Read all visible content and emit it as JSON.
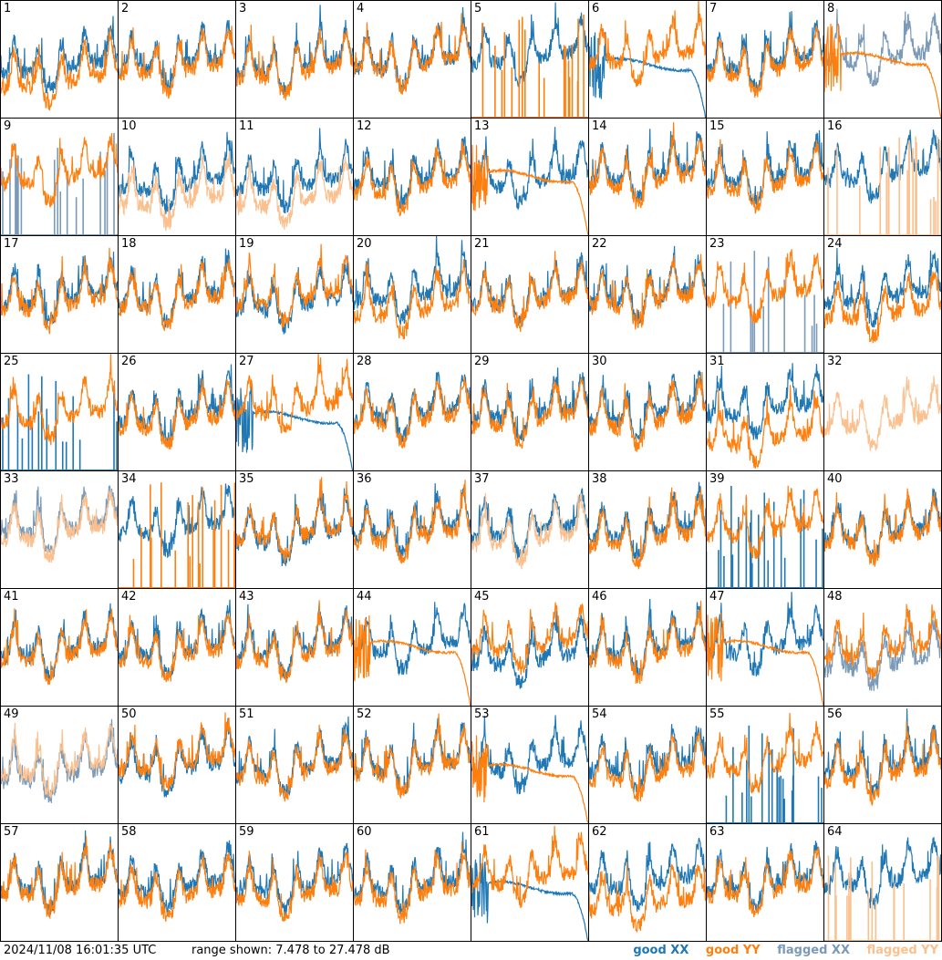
{
  "footer": {
    "timestamp": "2024/11/08 16:01:35 UTC",
    "range_text": "range shown: 7.478 to 27.478 dB"
  },
  "legend": [
    {
      "label": "good XX",
      "color": "#1f77b4"
    },
    {
      "label": "good YY",
      "color": "#ff7f0e"
    },
    {
      "label": "flagged XX",
      "color": "#7a9ab8"
    },
    {
      "label": "flagged YY",
      "color": "#fbc08e"
    }
  ],
  "chart_data": {
    "type": "line",
    "grid": {
      "rows": 8,
      "cols": 8
    },
    "ylim": [
      7.478,
      27.478
    ],
    "panels": [
      {
        "n": "1",
        "xx": "good",
        "yy": "good",
        "xx_mode": "normal",
        "yy_mode": "normal",
        "xx_level": 0.52,
        "yy_level": 0.4
      },
      {
        "n": "2",
        "xx": "good",
        "yy": "good",
        "xx_mode": "normal",
        "yy_mode": "normal",
        "xx_level": 0.55,
        "yy_level": 0.5
      },
      {
        "n": "3",
        "xx": "good",
        "yy": "good",
        "xx_mode": "normal",
        "yy_mode": "normal",
        "xx_level": 0.52,
        "yy_level": 0.48
      },
      {
        "n": "4",
        "xx": "good",
        "yy": "good",
        "xx_mode": "normal",
        "yy_mode": "normal",
        "xx_level": 0.56,
        "yy_level": 0.54
      },
      {
        "n": "5",
        "xx": "good",
        "yy": "good",
        "xx_mode": "normal",
        "yy_mode": "spikes",
        "xx_level": 0.6,
        "yy_level": 0.5
      },
      {
        "n": "6",
        "xx": "good",
        "yy": "good",
        "xx_mode": "decay",
        "yy_mode": "normal",
        "xx_level": 0.45,
        "yy_level": 0.6
      },
      {
        "n": "7",
        "xx": "good",
        "yy": "good",
        "xx_mode": "normal",
        "yy_mode": "normal",
        "xx_level": 0.55,
        "yy_level": 0.5
      },
      {
        "n": "8",
        "xx": "flagged",
        "yy": "good",
        "xx_mode": "normal",
        "yy_mode": "decay",
        "xx_level": 0.6,
        "yy_level": 0.5
      },
      {
        "n": "9",
        "xx": "flagged",
        "yy": "good",
        "xx_mode": "spikes",
        "yy_mode": "normal",
        "xx_level": 0.5,
        "yy_level": 0.58
      },
      {
        "n": "10",
        "xx": "good",
        "yy": "flagged",
        "xx_mode": "normal",
        "yy_mode": "normal",
        "xx_level": 0.52,
        "yy_level": 0.38
      },
      {
        "n": "11",
        "xx": "good",
        "yy": "flagged",
        "xx_mode": "normal",
        "yy_mode": "normal",
        "xx_level": 0.52,
        "yy_level": 0.38
      },
      {
        "n": "12",
        "xx": "good",
        "yy": "good",
        "xx_mode": "normal",
        "yy_mode": "normal",
        "xx_level": 0.56,
        "yy_level": 0.5
      },
      {
        "n": "13",
        "xx": "good",
        "yy": "good",
        "xx_mode": "normal",
        "yy_mode": "decay",
        "xx_level": 0.55,
        "yy_level": 0.5
      },
      {
        "n": "14",
        "xx": "good",
        "yy": "good",
        "xx_mode": "normal",
        "yy_mode": "normal",
        "xx_level": 0.6,
        "yy_level": 0.55
      },
      {
        "n": "15",
        "xx": "good",
        "yy": "good",
        "xx_mode": "normal",
        "yy_mode": "normal",
        "xx_level": 0.58,
        "yy_level": 0.52
      },
      {
        "n": "16",
        "xx": "good",
        "yy": "flagged",
        "xx_mode": "normal",
        "yy_mode": "spikes",
        "xx_level": 0.6,
        "yy_level": 0.5
      },
      {
        "n": "17",
        "xx": "good",
        "yy": "good",
        "xx_mode": "normal",
        "yy_mode": "normal",
        "xx_level": 0.55,
        "yy_level": 0.5
      },
      {
        "n": "18",
        "xx": "good",
        "yy": "good",
        "xx_mode": "normal",
        "yy_mode": "normal",
        "xx_level": 0.55,
        "yy_level": 0.52
      },
      {
        "n": "19",
        "xx": "good",
        "yy": "good",
        "xx_mode": "normal",
        "yy_mode": "normal",
        "xx_level": 0.5,
        "yy_level": 0.55
      },
      {
        "n": "20",
        "xx": "good",
        "yy": "good",
        "xx_mode": "normal",
        "yy_mode": "normal",
        "xx_level": 0.58,
        "yy_level": 0.45
      },
      {
        "n": "21",
        "xx": "good",
        "yy": "good",
        "xx_mode": "normal",
        "yy_mode": "normal",
        "xx_level": 0.55,
        "yy_level": 0.52
      },
      {
        "n": "22",
        "xx": "good",
        "yy": "good",
        "xx_mode": "normal",
        "yy_mode": "normal",
        "xx_level": 0.56,
        "yy_level": 0.53
      },
      {
        "n": "23",
        "xx": "flagged",
        "yy": "good",
        "xx_mode": "spikes",
        "yy_mode": "normal",
        "xx_level": 0.5,
        "yy_level": 0.58
      },
      {
        "n": "24",
        "xx": "good",
        "yy": "good",
        "xx_mode": "normal",
        "yy_mode": "normal",
        "xx_level": 0.56,
        "yy_level": 0.42
      },
      {
        "n": "25",
        "xx": "good",
        "yy": "good",
        "xx_mode": "spikes",
        "yy_mode": "normal",
        "xx_level": 0.5,
        "yy_level": 0.55
      },
      {
        "n": "26",
        "xx": "good",
        "yy": "good",
        "xx_mode": "normal",
        "yy_mode": "normal",
        "xx_level": 0.55,
        "yy_level": 0.5
      },
      {
        "n": "27",
        "xx": "good",
        "yy": "good",
        "xx_mode": "decay",
        "yy_mode": "normal",
        "xx_level": 0.45,
        "yy_level": 0.62
      },
      {
        "n": "28",
        "xx": "good",
        "yy": "good",
        "xx_mode": "normal",
        "yy_mode": "normal",
        "xx_level": 0.57,
        "yy_level": 0.52
      },
      {
        "n": "29",
        "xx": "good",
        "yy": "good",
        "xx_mode": "normal",
        "yy_mode": "normal",
        "xx_level": 0.57,
        "yy_level": 0.52
      },
      {
        "n": "30",
        "xx": "good",
        "yy": "good",
        "xx_mode": "normal",
        "yy_mode": "normal",
        "xx_level": 0.57,
        "yy_level": 0.5
      },
      {
        "n": "31",
        "xx": "good",
        "yy": "good",
        "xx_mode": "normal",
        "yy_mode": "normal",
        "xx_level": 0.6,
        "yy_level": 0.35
      },
      {
        "n": "32",
        "xx": "flagged",
        "yy": "flagged",
        "xx_mode": "none",
        "yy_mode": "normal",
        "xx_level": 0.5,
        "yy_level": 0.5
      },
      {
        "n": "33",
        "xx": "flagged",
        "yy": "flagged",
        "xx_mode": "normal",
        "yy_mode": "normal",
        "xx_level": 0.6,
        "yy_level": 0.55
      },
      {
        "n": "34",
        "xx": "good",
        "yy": "good",
        "xx_mode": "normal",
        "yy_mode": "spikes",
        "xx_level": 0.6,
        "yy_level": 0.5
      },
      {
        "n": "35",
        "xx": "good",
        "yy": "good",
        "xx_mode": "normal",
        "yy_mode": "normal",
        "xx_level": 0.52,
        "yy_level": 0.55
      },
      {
        "n": "36",
        "xx": "good",
        "yy": "good",
        "xx_mode": "normal",
        "yy_mode": "normal",
        "xx_level": 0.57,
        "yy_level": 0.52
      },
      {
        "n": "37",
        "xx": "good",
        "yy": "flagged",
        "xx_mode": "normal",
        "yy_mode": "normal",
        "xx_level": 0.57,
        "yy_level": 0.5
      },
      {
        "n": "38",
        "xx": "good",
        "yy": "good",
        "xx_mode": "normal",
        "yy_mode": "normal",
        "xx_level": 0.56,
        "yy_level": 0.5
      },
      {
        "n": "39",
        "xx": "good",
        "yy": "good",
        "xx_mode": "spikes",
        "yy_mode": "normal",
        "xx_level": 0.5,
        "yy_level": 0.58
      },
      {
        "n": "40",
        "xx": "good",
        "yy": "good",
        "xx_mode": "normal",
        "yy_mode": "normal",
        "xx_level": 0.55,
        "yy_level": 0.52
      },
      {
        "n": "41",
        "xx": "good",
        "yy": "good",
        "xx_mode": "normal",
        "yy_mode": "normal",
        "xx_level": 0.55,
        "yy_level": 0.52
      },
      {
        "n": "42",
        "xx": "good",
        "yy": "good",
        "xx_mode": "normal",
        "yy_mode": "normal",
        "xx_level": 0.56,
        "yy_level": 0.52
      },
      {
        "n": "43",
        "xx": "good",
        "yy": "good",
        "xx_mode": "normal",
        "yy_mode": "normal",
        "xx_level": 0.56,
        "yy_level": 0.52
      },
      {
        "n": "44",
        "xx": "good",
        "yy": "good",
        "xx_mode": "normal",
        "yy_mode": "decay",
        "xx_level": 0.58,
        "yy_level": 0.5
      },
      {
        "n": "45",
        "xx": "good",
        "yy": "good",
        "xx_mode": "normal",
        "yy_mode": "normal",
        "xx_level": 0.48,
        "yy_level": 0.6
      },
      {
        "n": "46",
        "xx": "good",
        "yy": "good",
        "xx_mode": "normal",
        "yy_mode": "normal",
        "xx_level": 0.56,
        "yy_level": 0.52
      },
      {
        "n": "47",
        "xx": "good",
        "yy": "good",
        "xx_mode": "normal",
        "yy_mode": "decay",
        "xx_level": 0.58,
        "yy_level": 0.5
      },
      {
        "n": "48",
        "xx": "flagged",
        "yy": "good",
        "xx_mode": "normal",
        "yy_mode": "normal",
        "xx_level": 0.45,
        "yy_level": 0.55
      },
      {
        "n": "49",
        "xx": "flagged",
        "yy": "flagged",
        "xx_mode": "normal",
        "yy_mode": "normal",
        "xx_level": 0.5,
        "yy_level": 0.55
      },
      {
        "n": "50",
        "xx": "good",
        "yy": "good",
        "xx_mode": "normal",
        "yy_mode": "normal",
        "xx_level": 0.55,
        "yy_level": 0.6
      },
      {
        "n": "51",
        "xx": "good",
        "yy": "good",
        "xx_mode": "normal",
        "yy_mode": "normal",
        "xx_level": 0.55,
        "yy_level": 0.52
      },
      {
        "n": "52",
        "xx": "good",
        "yy": "good",
        "xx_mode": "normal",
        "yy_mode": "normal",
        "xx_level": 0.57,
        "yy_level": 0.55
      },
      {
        "n": "53",
        "xx": "good",
        "yy": "good",
        "xx_mode": "normal",
        "yy_mode": "decay",
        "xx_level": 0.58,
        "yy_level": 0.45
      },
      {
        "n": "54",
        "xx": "good",
        "yy": "good",
        "xx_mode": "normal",
        "yy_mode": "normal",
        "xx_level": 0.57,
        "yy_level": 0.5
      },
      {
        "n": "55",
        "xx": "good",
        "yy": "good",
        "xx_mode": "spikes",
        "yy_mode": "normal",
        "xx_level": 0.5,
        "yy_level": 0.58
      },
      {
        "n": "56",
        "xx": "good",
        "yy": "good",
        "xx_mode": "normal",
        "yy_mode": "normal",
        "xx_level": 0.56,
        "yy_level": 0.5
      },
      {
        "n": "57",
        "xx": "good",
        "yy": "good",
        "xx_mode": "normal",
        "yy_mode": "normal",
        "xx_level": 0.56,
        "yy_level": 0.53
      },
      {
        "n": "58",
        "xx": "good",
        "yy": "good",
        "xx_mode": "normal",
        "yy_mode": "normal",
        "xx_level": 0.55,
        "yy_level": 0.48
      },
      {
        "n": "59",
        "xx": "good",
        "yy": "good",
        "xx_mode": "normal",
        "yy_mode": "normal",
        "xx_level": 0.55,
        "yy_level": 0.48
      },
      {
        "n": "60",
        "xx": "good",
        "yy": "good",
        "xx_mode": "normal",
        "yy_mode": "normal",
        "xx_level": 0.55,
        "yy_level": 0.48
      },
      {
        "n": "61",
        "xx": "good",
        "yy": "good",
        "xx_mode": "decay",
        "yy_mode": "normal",
        "xx_level": 0.45,
        "yy_level": 0.62
      },
      {
        "n": "62",
        "xx": "good",
        "yy": "good",
        "xx_mode": "normal",
        "yy_mode": "normal",
        "xx_level": 0.58,
        "yy_level": 0.4
      },
      {
        "n": "63",
        "xx": "good",
        "yy": "good",
        "xx_mode": "normal",
        "yy_mode": "normal",
        "xx_level": 0.57,
        "yy_level": 0.52
      },
      {
        "n": "64",
        "xx": "good",
        "yy": "flagged",
        "xx_mode": "normal",
        "yy_mode": "spikes",
        "xx_level": 0.6,
        "yy_level": 0.5
      }
    ]
  }
}
